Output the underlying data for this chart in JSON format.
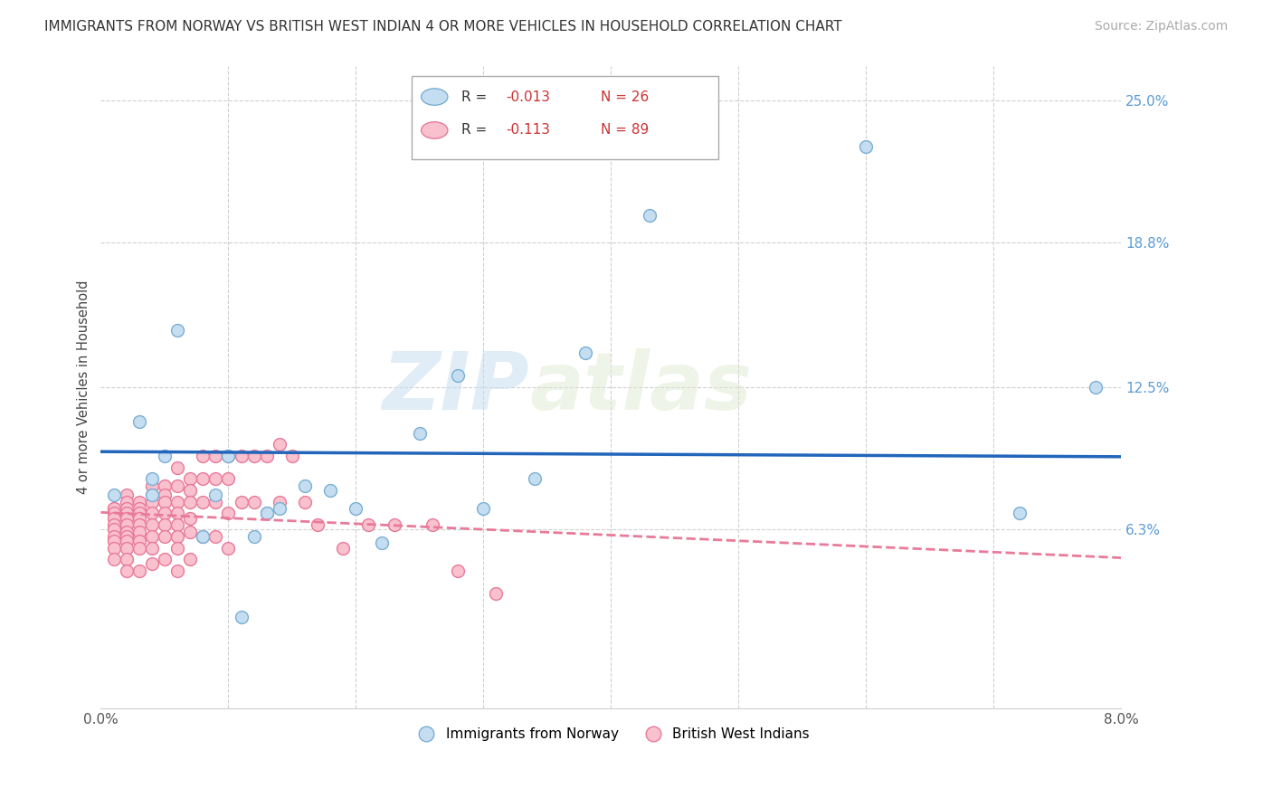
{
  "title": "IMMIGRANTS FROM NORWAY VS BRITISH WEST INDIAN 4 OR MORE VEHICLES IN HOUSEHOLD CORRELATION CHART",
  "source": "Source: ZipAtlas.com",
  "ylabel": "4 or more Vehicles in Household",
  "right_yticks": [
    0.0,
    0.063,
    0.125,
    0.188,
    0.25
  ],
  "right_yticklabels": [
    "",
    "6.3%",
    "12.5%",
    "18.8%",
    "25.0%"
  ],
  "xmin": 0.0,
  "xmax": 0.08,
  "ymin": -0.015,
  "ymax": 0.265,
  "norway_R": -0.013,
  "norway_N": 26,
  "bwi_R": -0.113,
  "bwi_N": 89,
  "norway_color": "#c5ddf0",
  "norway_edge": "#7aafd4",
  "bwi_color": "#f9c0ce",
  "bwi_edge": "#e87a9a",
  "trendline_norway_color": "#2266bb",
  "trendline_bwi_color": "#e87a9a",
  "watermark_zip": "ZIP",
  "watermark_atlas": "atlas",
  "norway_x": [
    0.001,
    0.003,
    0.004,
    0.004,
    0.005,
    0.006,
    0.008,
    0.009,
    0.01,
    0.011,
    0.012,
    0.013,
    0.014,
    0.016,
    0.018,
    0.02,
    0.022,
    0.025,
    0.028,
    0.03,
    0.034,
    0.038,
    0.043,
    0.06,
    0.072,
    0.078
  ],
  "norway_y": [
    0.078,
    0.11,
    0.078,
    0.085,
    0.095,
    0.15,
    0.06,
    0.078,
    0.095,
    0.025,
    0.06,
    0.07,
    0.072,
    0.082,
    0.08,
    0.072,
    0.057,
    0.105,
    0.13,
    0.072,
    0.085,
    0.14,
    0.2,
    0.23,
    0.07,
    0.125
  ],
  "bwi_x": [
    0.001,
    0.001,
    0.001,
    0.001,
    0.001,
    0.001,
    0.001,
    0.001,
    0.001,
    0.001,
    0.002,
    0.002,
    0.002,
    0.002,
    0.002,
    0.002,
    0.002,
    0.002,
    0.002,
    0.002,
    0.002,
    0.002,
    0.003,
    0.003,
    0.003,
    0.003,
    0.003,
    0.003,
    0.003,
    0.003,
    0.003,
    0.004,
    0.004,
    0.004,
    0.004,
    0.004,
    0.004,
    0.004,
    0.004,
    0.005,
    0.005,
    0.005,
    0.005,
    0.005,
    0.005,
    0.005,
    0.006,
    0.006,
    0.006,
    0.006,
    0.006,
    0.006,
    0.006,
    0.006,
    0.007,
    0.007,
    0.007,
    0.007,
    0.007,
    0.007,
    0.008,
    0.008,
    0.008,
    0.008,
    0.009,
    0.009,
    0.009,
    0.009,
    0.01,
    0.01,
    0.01,
    0.01,
    0.011,
    0.011,
    0.012,
    0.012,
    0.013,
    0.013,
    0.014,
    0.014,
    0.015,
    0.016,
    0.017,
    0.019,
    0.021,
    0.023,
    0.026,
    0.028,
    0.031
  ],
  "bwi_y": [
    0.072,
    0.072,
    0.07,
    0.068,
    0.065,
    0.063,
    0.06,
    0.058,
    0.055,
    0.05,
    0.078,
    0.075,
    0.072,
    0.07,
    0.068,
    0.065,
    0.062,
    0.06,
    0.058,
    0.055,
    0.05,
    0.045,
    0.075,
    0.072,
    0.07,
    0.068,
    0.065,
    0.062,
    0.058,
    0.055,
    0.045,
    0.082,
    0.078,
    0.075,
    0.07,
    0.065,
    0.06,
    0.055,
    0.048,
    0.082,
    0.078,
    0.075,
    0.07,
    0.065,
    0.06,
    0.05,
    0.09,
    0.082,
    0.075,
    0.07,
    0.065,
    0.06,
    0.055,
    0.045,
    0.085,
    0.08,
    0.075,
    0.068,
    0.062,
    0.05,
    0.095,
    0.085,
    0.075,
    0.06,
    0.095,
    0.085,
    0.075,
    0.06,
    0.095,
    0.085,
    0.07,
    0.055,
    0.095,
    0.075,
    0.095,
    0.075,
    0.095,
    0.07,
    0.1,
    0.075,
    0.095,
    0.075,
    0.065,
    0.055,
    0.065,
    0.065,
    0.065,
    0.045,
    0.035
  ]
}
